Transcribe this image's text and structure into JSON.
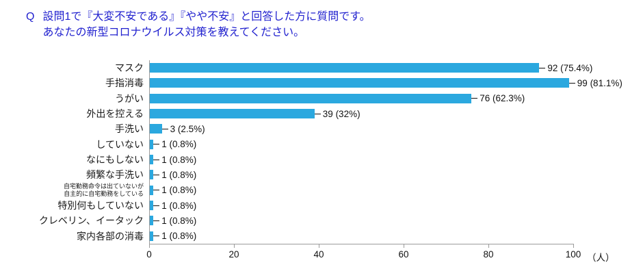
{
  "title": {
    "prefix": "Q",
    "line1": "設問1で『大変不安である』『やや不安』と回答した方に質問です。",
    "line2": "あなたの新型コロナウイルス対策を教えてください。"
  },
  "colors": {
    "title": "#2222cf",
    "bar": "#2BA8DF",
    "axis": "#9b9b9b"
  },
  "chart_data": {
    "type": "bar",
    "orientation": "horizontal",
    "title": "Q 設問1で『大変不安である』『やや不安』と回答した方に質問です。あなたの新型コロナウイルス対策を教えてください。",
    "categories": [
      "マスク",
      "手指消毒",
      "うがい",
      "外出を控える",
      "手洗い",
      "していない",
      "なにもしない",
      "頻繁な手洗い",
      "自宅勤務命令は出ていないが\n自主的に自宅勤務をしている",
      "特別何もしていない",
      "クレベリン、イータック",
      "家内各部の消毒"
    ],
    "values": [
      92,
      99,
      76,
      39,
      3,
      1,
      1,
      1,
      1,
      1,
      1,
      1
    ],
    "value_labels": [
      "92 (75.4%)",
      "99 (81.1%)",
      "76 (62.3%)",
      "39 (32%)",
      "3 (2.5%)",
      "1 (0.8%)",
      "1 (0.8%)",
      "1 (0.8%)",
      "1 (0.8%)",
      "1 (0.8%)",
      "1 (0.8%)",
      "1 (0.8%)"
    ],
    "xlabel": "",
    "ylabel": "",
    "xlim": [
      0,
      100
    ],
    "xticks": [
      0,
      20,
      40,
      60,
      80,
      100
    ],
    "x_unit": "（人）",
    "grid": false,
    "legend": "none"
  }
}
